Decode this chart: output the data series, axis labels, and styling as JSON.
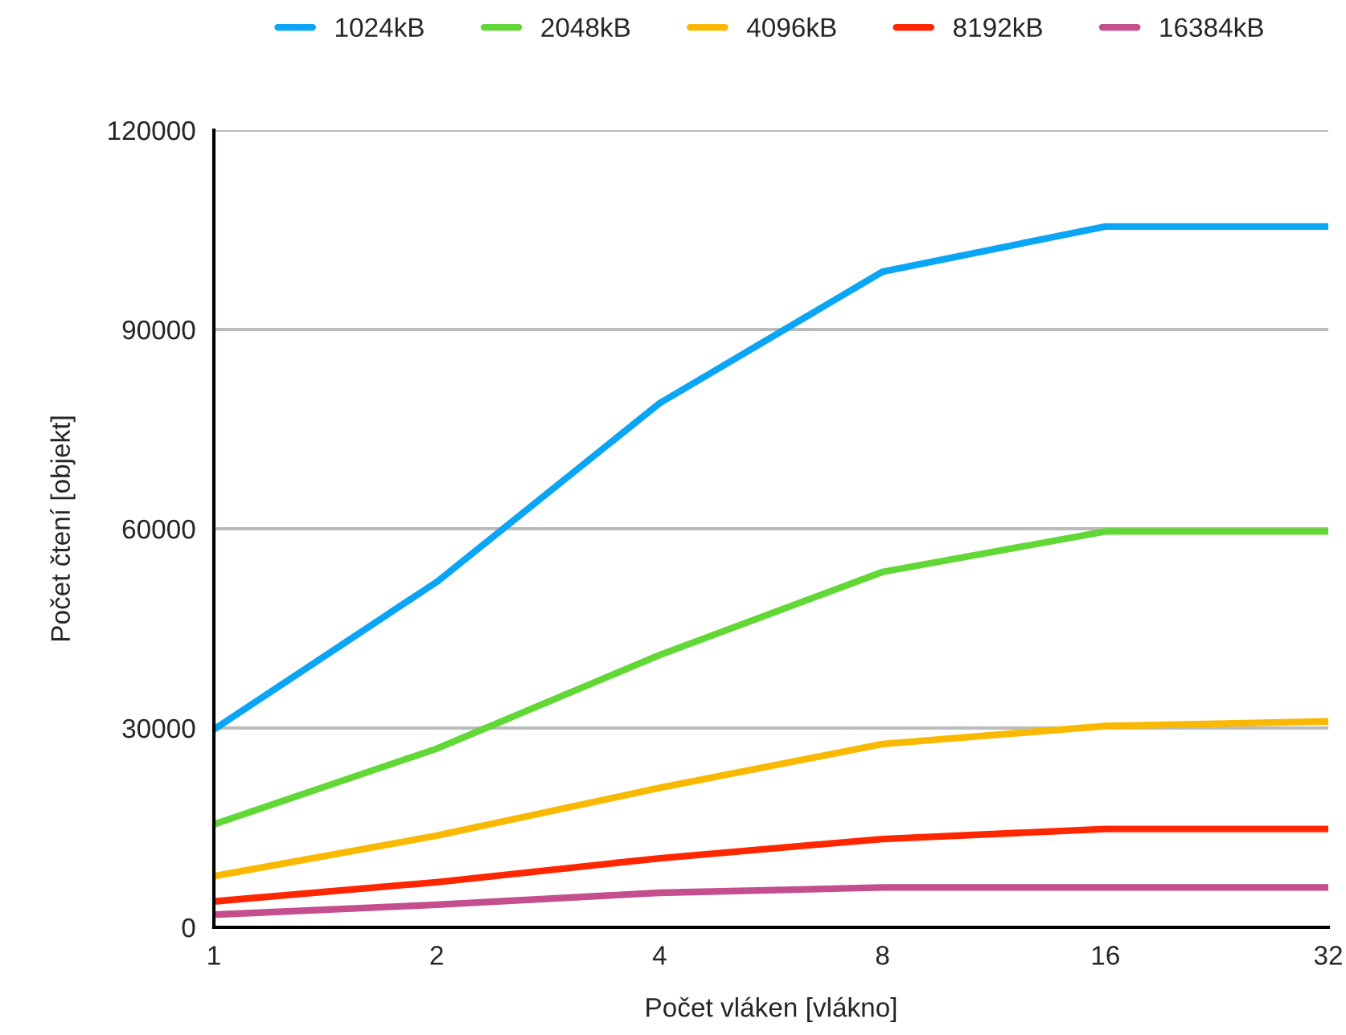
{
  "chart_data": {
    "type": "line",
    "xlabel": "Počet vláken [vlákno]",
    "ylabel": "Počet čtení [objekt]",
    "categories": [
      "1",
      "2",
      "4",
      "8",
      "16",
      "32"
    ],
    "series": [
      {
        "name": "1024kB",
        "color": "#0aa5f5",
        "values": [
          29800,
          52000,
          78900,
          98700,
          105500,
          105500
        ]
      },
      {
        "name": "2048kB",
        "color": "#61d836",
        "values": [
          15500,
          26900,
          41000,
          53500,
          59600,
          59600
        ]
      },
      {
        "name": "4096kB",
        "color": "#fab901",
        "values": [
          7700,
          13800,
          21000,
          27600,
          30300,
          31000
        ]
      },
      {
        "name": "8192kB",
        "color": "#ff2600",
        "values": [
          3900,
          6800,
          10400,
          13300,
          14800,
          14800
        ]
      },
      {
        "name": "16384kB",
        "color": "#c44e8e",
        "values": [
          1900,
          3400,
          5200,
          6000,
          6000,
          6000
        ]
      }
    ],
    "ylim": [
      0,
      120000
    ],
    "yticks": [
      0,
      30000,
      60000,
      90000,
      120000
    ],
    "grid": "y",
    "legend": "top",
    "marker": "none",
    "line_style": "solid"
  }
}
